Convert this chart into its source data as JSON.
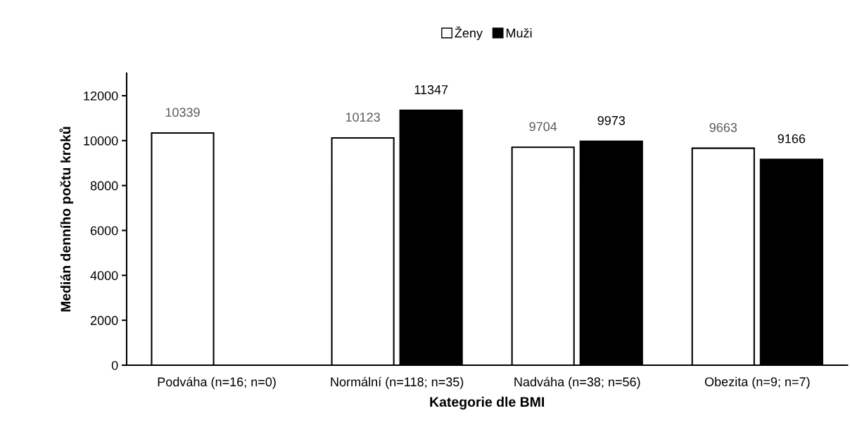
{
  "chart_data": {
    "type": "bar",
    "xlabel": "Kategorie dle BMI",
    "ylabel": "Medián denního počtu kroků",
    "categories": [
      "Podváha (n=16; n=0)",
      "Normální (n=118; n=35)",
      "Nadváha (n=38; n=56)",
      "Obezita (n=9; n=7)"
    ],
    "series": [
      {
        "name": "Ženy",
        "color": "#ffffff",
        "values": [
          10339,
          10123,
          9704,
          9663
        ]
      },
      {
        "name": "Muži",
        "color": "#000000",
        "values": [
          null,
          11347,
          9973,
          9166
        ]
      }
    ],
    "ylim": [
      0,
      13000
    ],
    "yticks": [
      0,
      2000,
      4000,
      6000,
      8000,
      10000,
      12000
    ],
    "grid": false,
    "legend": "top",
    "data_labels": true
  }
}
